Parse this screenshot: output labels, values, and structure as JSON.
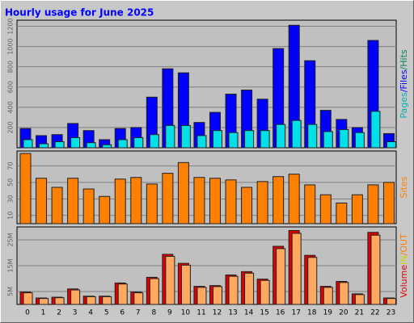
{
  "chart_data": [
    {
      "type": "bar",
      "title": "Hourly usage for June 2025",
      "ylim": [
        0,
        1260
      ],
      "yticks": [
        200,
        400,
        600,
        800,
        1000,
        1200
      ],
      "grid": true,
      "legend": [
        {
          "text": "Pages",
          "color": "#00b0b0"
        },
        {
          "text": "/",
          "color": "#0000ff"
        },
        {
          "text": "Files",
          "color": "#0000ff"
        },
        {
          "text": "/",
          "color": "#008060"
        },
        {
          "text": "Hits",
          "color": "#008060"
        }
      ],
      "series": [
        {
          "color": "#0000ff",
          "values": [
            190,
            120,
            130,
            240,
            170,
            80,
            190,
            200,
            500,
            780,
            740,
            250,
            350,
            530,
            570,
            480,
            980,
            1210,
            860,
            370,
            280,
            200,
            1060,
            140
          ]
        },
        {
          "color": "#00e0e8",
          "values": [
            80,
            40,
            60,
            100,
            50,
            30,
            80,
            100,
            130,
            220,
            220,
            120,
            170,
            150,
            170,
            170,
            230,
            270,
            230,
            160,
            180,
            150,
            360,
            60
          ]
        }
      ]
    },
    {
      "type": "bar",
      "ylim": [
        0,
        88
      ],
      "yticks": [
        10,
        30,
        50,
        70
      ],
      "grid": true,
      "legend": [
        {
          "text": "Sites",
          "color": "#ff8000"
        }
      ],
      "series": [
        {
          "color": "#ff8000",
          "values": [
            85,
            55,
            44,
            55,
            42,
            33,
            54,
            56,
            48,
            61,
            74,
            56,
            55,
            53,
            44,
            51,
            57,
            60,
            47,
            35,
            25,
            35,
            47,
            50
          ]
        }
      ]
    },
    {
      "type": "bar",
      "categories": [
        "0",
        "1",
        "2",
        "3",
        "4",
        "5",
        "6",
        "7",
        "8",
        "9",
        "10",
        "11",
        "12",
        "13",
        "14",
        "15",
        "16",
        "17",
        "18",
        "19",
        "20",
        "21",
        "22",
        "23"
      ],
      "ylim": [
        0,
        30
      ],
      "yticks": [
        {
          "value": 5,
          "label": "5M"
        },
        {
          "value": 15,
          "label": "15M"
        },
        {
          "value": 25,
          "label": "25M"
        }
      ],
      "grid": true,
      "legend": [
        {
          "text": "Volume",
          "color": "#e00000"
        },
        {
          "text": "IN",
          "color": "#d0d000"
        },
        {
          "text": "/",
          "color": "#ff8000"
        },
        {
          "text": "OUT",
          "color": "#ff8000"
        }
      ],
      "series": [
        {
          "color": "#e00000",
          "values": [
            4.8,
            2.5,
            2.8,
            6.0,
            3.2,
            3.2,
            8.3,
            4.8,
            10.5,
            19.4,
            15.9,
            7.0,
            7.3,
            11.4,
            12.7,
            9.8,
            22.5,
            28.6,
            19.0,
            7.0,
            8.9,
            4.1,
            27.9,
            2.5
          ]
        },
        {
          "color": "#ffa860",
          "values": [
            4.5,
            2.3,
            2.6,
            5.6,
            3.0,
            3.0,
            7.9,
            4.5,
            10.0,
            18.6,
            15.2,
            6.6,
            6.9,
            10.9,
            12.1,
            9.3,
            21.6,
            27.5,
            18.2,
            6.6,
            8.5,
            3.8,
            26.8,
            2.3
          ]
        }
      ]
    }
  ]
}
